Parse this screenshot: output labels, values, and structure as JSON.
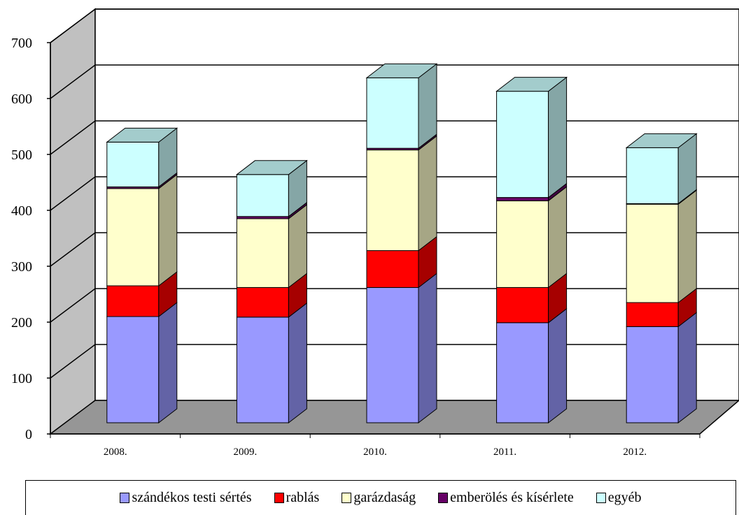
{
  "chart_data": {
    "type": "bar",
    "stacked": true,
    "three_d": true,
    "categories": [
      "2008.",
      "2009.",
      "2010.",
      "2011.",
      "2012."
    ],
    "series": [
      {
        "name": "szándékos testi sértés",
        "color": "#9999FF",
        "values": [
          190,
          189,
          242,
          179,
          172
        ]
      },
      {
        "name": "rablás",
        "color": "#FF0000",
        "values": [
          55,
          53,
          66,
          63,
          43
        ]
      },
      {
        "name": "garázdaság",
        "color": "#FFFFCC",
        "values": [
          174,
          123,
          180,
          155,
          176
        ]
      },
      {
        "name": "emberölés és kísérlete",
        "color": "#660066",
        "values": [
          3,
          4,
          3,
          6,
          1
        ]
      },
      {
        "name": "egyéb",
        "color": "#CCFFFF",
        "values": [
          80,
          75,
          126,
          190,
          100
        ]
      }
    ],
    "yticks": [
      "0",
      "100",
      "200",
      "300",
      "400",
      "500",
      "600",
      "700"
    ],
    "ylim": [
      0,
      700
    ],
    "grid": true,
    "legend_position": "bottom"
  }
}
